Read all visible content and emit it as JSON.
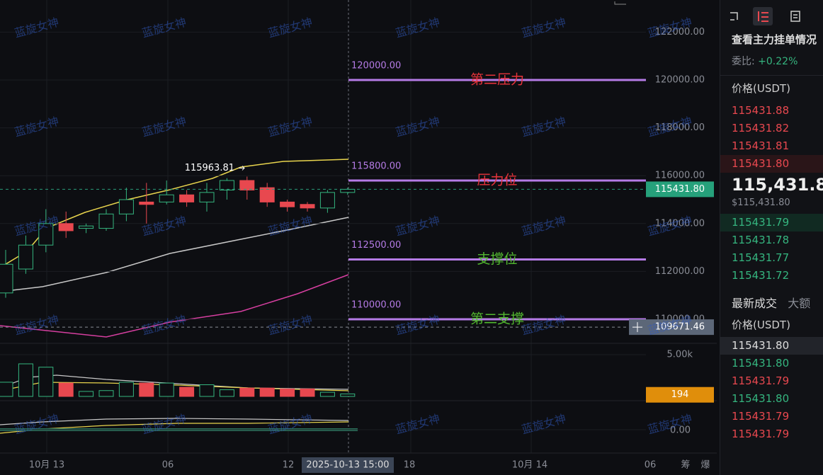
{
  "watermark": "蓝旋女神",
  "chart": {
    "ylim": [
      109000,
      123000
    ],
    "yticks": [
      {
        "value": 122000,
        "label": "122000.00"
      },
      {
        "value": 120000,
        "label": "120000.00"
      },
      {
        "value": 118000,
        "label": "118000.00"
      },
      {
        "value": 116000,
        "label": "116000.00"
      },
      {
        "value": 114000,
        "label": "114000.00"
      },
      {
        "value": 112000,
        "label": "112000.00"
      },
      {
        "value": 110000,
        "label": "110000.00"
      }
    ],
    "levels": [
      {
        "price": {
          "value": 120000,
          "label": "120000.00"
        },
        "name": "第二压力",
        "color": "#e8333a"
      },
      {
        "price": {
          "value": 115800,
          "label": "115800.00"
        },
        "name": "压力位",
        "color": "#e8333a"
      },
      {
        "price": {
          "value": 112500,
          "label": "112500.00"
        },
        "name": "支撑位",
        "color": "#52b830"
      },
      {
        "price": {
          "value": 110000,
          "label": "110000.00"
        },
        "name": "第二支撑",
        "color": "#52b830"
      }
    ],
    "candles": [
      [
        111100,
        112900,
        110900,
        112300
      ],
      [
        112100,
        113500,
        111900,
        113100
      ],
      [
        113100,
        114600,
        112800,
        114000
      ],
      [
        114000,
        114500,
        113400,
        113700
      ],
      [
        113800,
        114000,
        113600,
        113900
      ],
      [
        113800,
        114600,
        113700,
        114400
      ],
      [
        114400,
        115500,
        114100,
        115000
      ],
      [
        114900,
        115700,
        114000,
        114800
      ],
      [
        114900,
        115800,
        114800,
        115200
      ],
      [
        115200,
        115400,
        114700,
        114900
      ],
      [
        114900,
        115700,
        114500,
        115300
      ],
      [
        115400,
        115900,
        115000,
        115800
      ],
      [
        115800,
        115963.81,
        115000,
        115400
      ],
      [
        115500,
        115700,
        114700,
        114900
      ],
      [
        114900,
        115000,
        114500,
        114700
      ],
      [
        114800,
        114900,
        114500,
        114650
      ],
      [
        114650,
        115400,
        114450,
        115300
      ],
      [
        115300,
        115500,
        115200,
        115431.8
      ]
    ],
    "high_marker": {
      "value": 115963.81,
      "label": "115963.81"
    },
    "last_price": {
      "value": 115431.8,
      "label": "115431.80"
    },
    "crosshair_price": {
      "value": 109671.46,
      "label": "109671.46"
    },
    "volume": {
      "ylim": [
        0,
        5000
      ],
      "yticks": [
        {
          "value": 5000,
          "label": "5.00k"
        }
      ],
      "values": [
        1700,
        3900,
        3500,
        1600,
        600,
        700,
        1700,
        1600,
        1600,
        1100,
        1400,
        800,
        1000,
        1000,
        900,
        900,
        500,
        300
      ],
      "current": 194
    },
    "indicator_ticks": [
      {
        "value": 0,
        "label": "0.00"
      }
    ],
    "time_labels": [
      "10月 13",
      "06",
      "12",
      "2025-10-13 15:00",
      "18",
      "10月 14",
      "06"
    ],
    "tools": [
      "筹",
      "爆"
    ]
  },
  "panel": {
    "title": "查看主力挂单情况",
    "ratio_label": "委比:",
    "ratio": "+0.22%",
    "price_header": "价格(USDT)",
    "asks": [
      "115431.88",
      "115431.82",
      "115431.81",
      "115431.80"
    ],
    "price": "115,431.80",
    "price_usd": "$115,431.80",
    "bids": [
      "115431.79",
      "115431.78",
      "115431.77",
      "115431.72"
    ],
    "tabs": [
      "最新成交",
      "大额"
    ],
    "trades_header": "价格(USDT)",
    "trades": [
      {
        "price": "115431.80",
        "side": "neutral"
      },
      {
        "price": "115431.80",
        "side": "buy"
      },
      {
        "price": "115431.79",
        "side": "sell"
      },
      {
        "price": "115431.80",
        "side": "buy"
      },
      {
        "price": "115431.79",
        "side": "sell"
      },
      {
        "price": "115431.79",
        "side": "sell"
      }
    ]
  }
}
